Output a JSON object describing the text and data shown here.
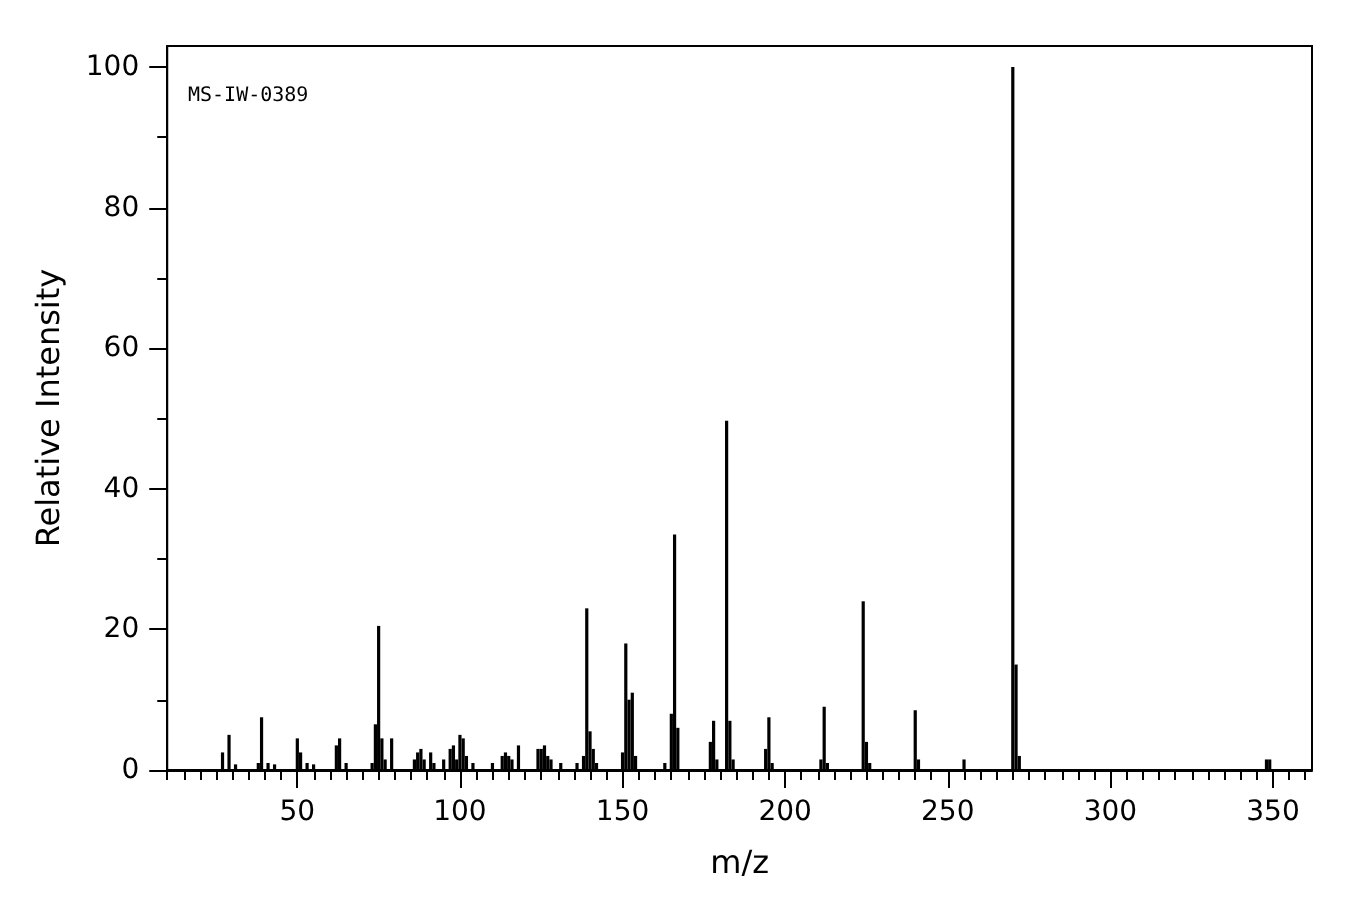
{
  "chart_data": {
    "type": "bar",
    "xlabel": "m/z",
    "ylabel": "Relative Intensity",
    "color": "#000000",
    "annotations": [
      "MS-IW-0389"
    ],
    "x": [
      27,
      29,
      31,
      38,
      39,
      41,
      43,
      50,
      51,
      53,
      55,
      62,
      63,
      65,
      73,
      74,
      75,
      76,
      77,
      79,
      86,
      87,
      88,
      89,
      91,
      92,
      95,
      97,
      98,
      99,
      100,
      101,
      102,
      104,
      110,
      113,
      114,
      115,
      116,
      118,
      124,
      125,
      126,
      127,
      128,
      131,
      136,
      138,
      139,
      140,
      141,
      142,
      150,
      151,
      152,
      153,
      154,
      163,
      165,
      166,
      167,
      177,
      178,
      179,
      182,
      183,
      184,
      194,
      195,
      196,
      211,
      212,
      213,
      224,
      225,
      226,
      240,
      241,
      255,
      270,
      271,
      272,
      348,
      349
    ],
    "values": [
      2.5,
      5,
      0.8,
      1,
      7.5,
      1,
      0.8,
      4.5,
      2.5,
      1,
      0.8,
      3.5,
      4.5,
      1,
      1,
      6.5,
      20.5,
      4.5,
      1.5,
      4.5,
      1.5,
      2.5,
      3,
      1.5,
      2.5,
      1,
      1.5,
      3,
      3.5,
      1.5,
      5,
      4.5,
      2,
      1,
      1,
      2,
      2.5,
      2,
      1.5,
      3.5,
      3,
      3,
      3.5,
      2,
      1.5,
      1,
      1,
      2,
      23,
      5.5,
      3,
      1,
      2.5,
      18,
      10,
      11,
      2,
      1,
      8,
      33.5,
      6,
      4,
      7,
      1.5,
      49.7,
      7,
      1.5,
      3,
      7.5,
      1,
      1.5,
      9,
      1,
      24,
      4,
      1,
      8.5,
      1.5,
      1.5,
      100,
      15,
      2,
      1.5,
      1.5
    ],
    "xlim": [
      10,
      362
    ],
    "xticks": [
      50,
      100,
      150,
      200,
      250,
      300,
      350
    ],
    "ylim": [
      0,
      103
    ],
    "yticks": [
      0,
      20,
      40,
      60,
      80,
      100
    ]
  }
}
